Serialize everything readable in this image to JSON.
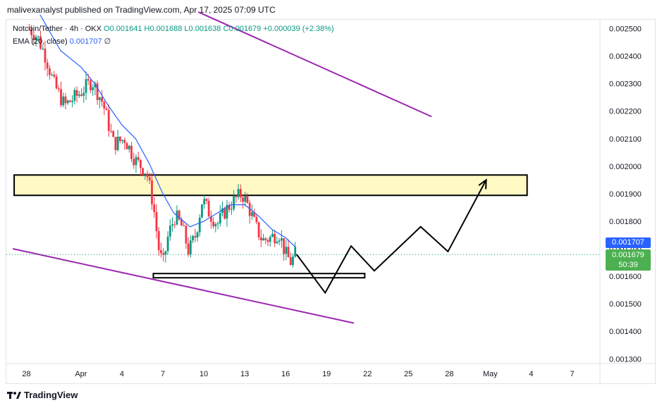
{
  "caption": "malivexanalyst published on TradingView.com, Apr 17, 2025 07:09 UTC",
  "legend": {
    "symbol": "Notcoin/Tether · 4h · OKX",
    "open": "O0.001641",
    "high": "H0.001688",
    "low": "L0.001638",
    "close": "C0.001679",
    "change": "+0.000039 (+2.38%)",
    "ema_label": "EMA (20, close)",
    "ema_value": "0.001707",
    "ema_extra": "∅"
  },
  "price_tags": {
    "ema": "0.001707",
    "last": "0.001679",
    "countdown": "50:39"
  },
  "footer": {
    "brand": "TradingView",
    "logo_icon": "tradingview-logo-icon"
  },
  "colors": {
    "up": "#089981",
    "down": "#f23645",
    "ema": "#2962ff",
    "trendline": "#9c27b0",
    "zone_fill": "#fff9c4",
    "projection": "#000000"
  },
  "chart_data": {
    "type": "candlestick",
    "symbol": "Notcoin/Tether",
    "timeframe": "4h",
    "exchange": "OKX",
    "ylim": [
      0.00125,
      0.00256
    ],
    "y_ticks": [
      "0.002500",
      "0.002400",
      "0.002300",
      "0.002200",
      "0.002100",
      "0.002000",
      "0.001900",
      "0.001800",
      "0.001700",
      "0.001600",
      "0.001500",
      "0.001400",
      "0.001300"
    ],
    "x_ticks": [
      "28",
      "Apr",
      "4",
      "7",
      "10",
      "13",
      "16",
      "19",
      "22",
      "25",
      "28",
      "May",
      "4",
      "7"
    ],
    "x_tick_days": [
      -3,
      1,
      4,
      7,
      10,
      13,
      16,
      19,
      22,
      25,
      28,
      31,
      34,
      37
    ],
    "x_range_days": [
      -3.5,
      39
    ],
    "close_path": [
      {
        "day": -2.8,
        "price": 0.0025
      },
      {
        "day": -2.2,
        "price": 0.00247
      },
      {
        "day": -1.6,
        "price": 0.0024
      },
      {
        "day": -1.0,
        "price": 0.0023
      },
      {
        "day": -0.2,
        "price": 0.00222
      },
      {
        "day": 0.8,
        "price": 0.00226
      },
      {
        "day": 1.8,
        "price": 0.00231
      },
      {
        "day": 2.6,
        "price": 0.00223
      },
      {
        "day": 3.4,
        "price": 0.00208
      },
      {
        "day": 4.2,
        "price": 0.0021
      },
      {
        "day": 5.0,
        "price": 0.00202
      },
      {
        "day": 5.8,
        "price": 0.00198
      },
      {
        "day": 6.3,
        "price": 0.00186
      },
      {
        "day": 6.7,
        "price": 0.0017
      },
      {
        "day": 7.0,
        "price": 0.00164
      },
      {
        "day": 7.4,
        "price": 0.00175
      },
      {
        "day": 7.9,
        "price": 0.00182
      },
      {
        "day": 8.4,
        "price": 0.00178
      },
      {
        "day": 8.9,
        "price": 0.00169
      },
      {
        "day": 9.4,
        "price": 0.00175
      },
      {
        "day": 9.9,
        "price": 0.00188
      },
      {
        "day": 10.4,
        "price": 0.00183
      },
      {
        "day": 11.0,
        "price": 0.00179
      },
      {
        "day": 11.6,
        "price": 0.00184
      },
      {
        "day": 12.3,
        "price": 0.00188
      },
      {
        "day": 12.8,
        "price": 0.0019
      },
      {
        "day": 13.3,
        "price": 0.00185
      },
      {
        "day": 13.8,
        "price": 0.00178
      },
      {
        "day": 14.3,
        "price": 0.00173
      },
      {
        "day": 14.9,
        "price": 0.00174
      },
      {
        "day": 15.5,
        "price": 0.00176
      },
      {
        "day": 16.0,
        "price": 0.00168
      },
      {
        "day": 16.4,
        "price": 0.00165
      },
      {
        "day": 16.7,
        "price": 0.00168
      }
    ],
    "ema_path": [
      {
        "day": -2.0,
        "price": 0.00255
      },
      {
        "day": -0.5,
        "price": 0.00242
      },
      {
        "day": 1.0,
        "price": 0.00236
      },
      {
        "day": 2.0,
        "price": 0.0023
      },
      {
        "day": 3.0,
        "price": 0.00222
      },
      {
        "day": 4.0,
        "price": 0.00215
      },
      {
        "day": 5.0,
        "price": 0.0021
      },
      {
        "day": 6.0,
        "price": 0.00201
      },
      {
        "day": 7.0,
        "price": 0.0019
      },
      {
        "day": 7.8,
        "price": 0.00183
      },
      {
        "day": 9.0,
        "price": 0.00178
      },
      {
        "day": 10.0,
        "price": 0.0018
      },
      {
        "day": 11.0,
        "price": 0.00183
      },
      {
        "day": 12.0,
        "price": 0.00186
      },
      {
        "day": 13.0,
        "price": 0.00186
      },
      {
        "day": 14.0,
        "price": 0.00182
      },
      {
        "day": 15.0,
        "price": 0.00177
      },
      {
        "day": 16.0,
        "price": 0.00174
      },
      {
        "day": 16.7,
        "price": 0.001707
      }
    ],
    "trendlines": [
      {
        "name": "upper",
        "from": {
          "day": 9.6,
          "price": 0.00256
        },
        "to": {
          "day": 26.7,
          "price": 0.00218
        }
      },
      {
        "name": "lower",
        "from": {
          "day": -4.0,
          "price": 0.0017
        },
        "to": {
          "day": 21.0,
          "price": 0.00143
        }
      }
    ],
    "zones": [
      {
        "name": "resistance",
        "from_day": -3.9,
        "to_day": 33.7,
        "high": 0.001968,
        "low": 0.001894
      },
      {
        "name": "support",
        "from_day": 6.3,
        "to_day": 21.8,
        "high": 0.00161,
        "low": 0.0016
      }
    ],
    "projection": [
      {
        "day": 16.8,
        "price": 0.00168
      },
      {
        "day": 18.9,
        "price": 0.00154
      },
      {
        "day": 20.8,
        "price": 0.00171
      },
      {
        "day": 22.5,
        "price": 0.00162
      },
      {
        "day": 25.9,
        "price": 0.00178
      },
      {
        "day": 27.9,
        "price": 0.00169
      },
      {
        "day": 30.7,
        "price": 0.00195
      }
    ],
    "last_price": 0.001679,
    "ema_value": 0.001707
  }
}
